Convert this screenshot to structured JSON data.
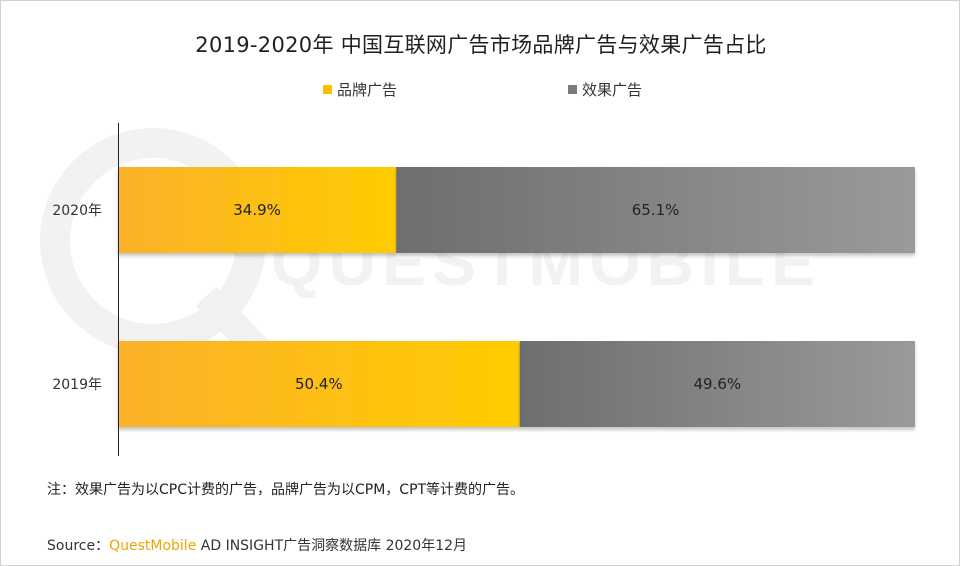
{
  "title": "2019-2020年 中国互联网广告市场品牌广告与效果广告占比",
  "legend": [
    {
      "label": "品牌广告",
      "color": "#fcbf00"
    },
    {
      "label": "效果广告",
      "color": "#7a7a7a"
    }
  ],
  "watermark": "QUESTMOBILE",
  "note": "注：效果广告为以CPC计费的广告，品牌广告为以CPM，CPT等计费的广告。",
  "source": {
    "prefix": "Source：",
    "brand": "QuestMobile",
    "rest": " AD INSIGHT广告洞察数据库 2020年12月"
  },
  "chart_data": {
    "type": "bar",
    "orientation": "horizontal",
    "stacked": true,
    "percent": true,
    "categories": [
      "2020年",
      "2019年"
    ],
    "series": [
      {
        "name": "品牌广告",
        "values": [
          34.9,
          50.4
        ],
        "labels": [
          "34.9%",
          "50.4%"
        ],
        "color": "#fcbf00"
      },
      {
        "name": "效果广告",
        "values": [
          65.1,
          49.6
        ],
        "labels": [
          "65.1%",
          "49.6%"
        ],
        "color": "#7a7a7a"
      }
    ],
    "xlim": [
      0,
      100
    ],
    "grid": false,
    "legend_position": "top"
  }
}
